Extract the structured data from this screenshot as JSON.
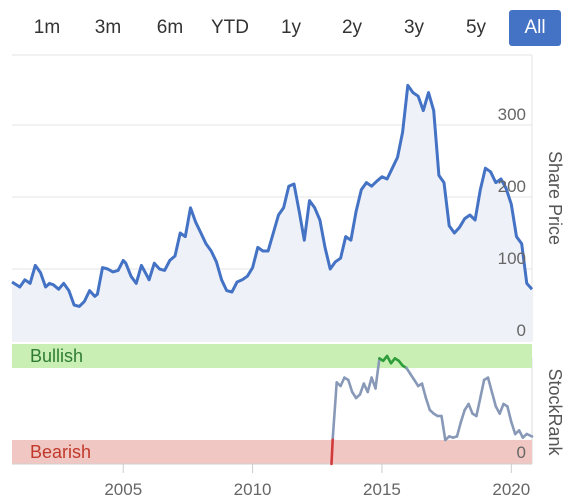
{
  "range_selector": {
    "buttons": [
      "1m",
      "3m",
      "6m",
      "YTD",
      "1y",
      "2y",
      "3y",
      "5y",
      "All"
    ],
    "active": "All",
    "active_color": "#4472c4"
  },
  "chart_data": [
    {
      "type": "area",
      "ylabel": "Share Price",
      "ylim": [
        0,
        390
      ],
      "yticks": [
        0,
        100,
        200,
        300
      ],
      "xlim": [
        2000.7,
        2020.8
      ],
      "grid": true,
      "line_color": "#4472c4",
      "fill_color": "#eef1f8",
      "series": [
        {
          "x": [
            2000.7,
            2001.0,
            2001.2,
            2001.4,
            2001.6,
            2001.8,
            2002.0,
            2002.15,
            2002.3,
            2002.5,
            2002.7,
            2002.9,
            2003.1,
            2003.3,
            2003.5,
            2003.7,
            2003.9,
            2004.0,
            2004.2,
            2004.4,
            2004.6,
            2004.8,
            2005.0,
            2005.1,
            2005.3,
            2005.5,
            2005.7,
            2005.9,
            2006.0,
            2006.2,
            2006.4,
            2006.6,
            2006.8,
            2007.0,
            2007.2,
            2007.4,
            2007.6,
            2007.8,
            2008.0,
            2008.2,
            2008.4,
            2008.6,
            2008.8,
            2009.0,
            2009.2,
            2009.4,
            2009.6,
            2009.8,
            2010.0,
            2010.2,
            2010.4,
            2010.6,
            2010.8,
            2011.0,
            2011.2,
            2011.4,
            2011.6,
            2011.8,
            2012.0,
            2012.2,
            2012.4,
            2012.6,
            2012.8,
            2013.0,
            2013.2,
            2013.4,
            2013.6,
            2013.8,
            2014.0,
            2014.2,
            2014.4,
            2014.6,
            2014.8,
            2015.0,
            2015.2,
            2015.4,
            2015.6,
            2015.8,
            2016.0,
            2016.2,
            2016.4,
            2016.6,
            2016.8,
            2017.0,
            2017.2,
            2017.4,
            2017.6,
            2017.8,
            2018.0,
            2018.2,
            2018.4,
            2018.6,
            2018.8,
            2019.0,
            2019.2,
            2019.4,
            2019.6,
            2019.8,
            2020.0,
            2020.2,
            2020.4,
            2020.6,
            2020.8
          ],
          "y": [
            82,
            75,
            85,
            80,
            105,
            95,
            75,
            80,
            78,
            72,
            80,
            70,
            50,
            48,
            55,
            70,
            62,
            65,
            102,
            100,
            96,
            98,
            112,
            108,
            90,
            80,
            105,
            92,
            85,
            108,
            100,
            98,
            112,
            118,
            150,
            145,
            185,
            165,
            150,
            135,
            125,
            110,
            85,
            70,
            68,
            82,
            85,
            90,
            102,
            130,
            125,
            125,
            150,
            175,
            185,
            215,
            218,
            180,
            140,
            195,
            185,
            168,
            130,
            100,
            110,
            115,
            145,
            140,
            180,
            210,
            220,
            215,
            222,
            228,
            225,
            240,
            255,
            290,
            355,
            345,
            340,
            320,
            345,
            320,
            230,
            220,
            160,
            150,
            158,
            170,
            175,
            168,
            210,
            240,
            235,
            220,
            225,
            212,
            190,
            145,
            135,
            80,
            72
          ]
        }
      ]
    },
    {
      "type": "line",
      "ylabel": "StockRank",
      "ylim": [
        0,
        110
      ],
      "yticks": [
        0
      ],
      "xlim": [
        2000.7,
        2020.8
      ],
      "xticks": [
        2005,
        2010,
        2015,
        2020
      ],
      "zones": [
        {
          "label": "Bullish",
          "from": 80,
          "to": 100,
          "color": "#c9efb5",
          "text_color": "#2e7d32"
        },
        {
          "label": "Bearish",
          "from": 0,
          "to": 20,
          "color": "#f0c7c2",
          "text_color": "#c0392b"
        }
      ],
      "series": [
        {
          "x": [
            2013.05,
            2013.1,
            2013.25,
            2013.4,
            2013.55,
            2013.7,
            2013.85,
            2014.0,
            2014.15,
            2014.3,
            2014.45,
            2014.6,
            2014.75,
            2014.9,
            2015.05,
            2015.2,
            2015.35,
            2015.5,
            2015.65,
            2015.8,
            2015.95,
            2016.1,
            2016.25,
            2016.4,
            2016.55,
            2016.7,
            2016.85,
            2017.0,
            2017.15,
            2017.3,
            2017.45,
            2017.6,
            2017.75,
            2017.9,
            2018.05,
            2018.2,
            2018.35,
            2018.5,
            2018.65,
            2018.8,
            2018.95,
            2019.1,
            2019.25,
            2019.4,
            2019.55,
            2019.7,
            2019.85,
            2020.0,
            2020.15,
            2020.3,
            2020.45,
            2020.6,
            2020.8
          ],
          "y": [
            0,
            22,
            68,
            65,
            72,
            70,
            60,
            55,
            58,
            67,
            60,
            72,
            63,
            88,
            86,
            90,
            84,
            88,
            86,
            82,
            80,
            75,
            70,
            65,
            67,
            55,
            45,
            42,
            40,
            40,
            20,
            23,
            22,
            23,
            35,
            45,
            50,
            42,
            40,
            55,
            70,
            72,
            60,
            48,
            42,
            50,
            48,
            35,
            25,
            28,
            22,
            25,
            23
          ]
        }
      ]
    }
  ]
}
